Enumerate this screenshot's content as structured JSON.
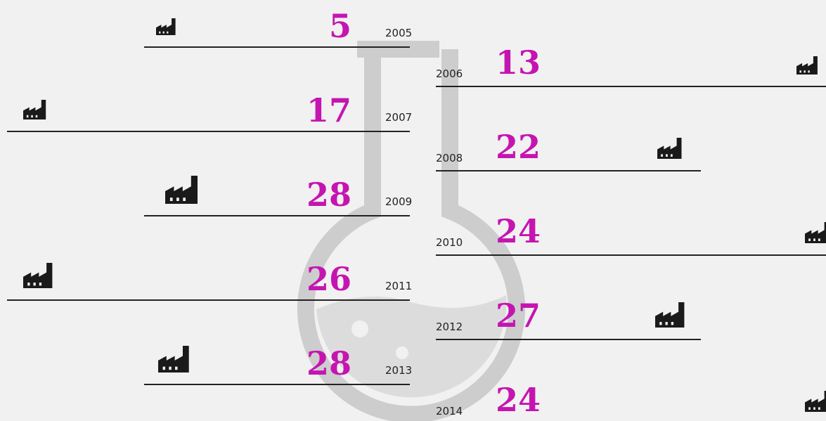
{
  "items": [
    {
      "year": "2005",
      "value": 5
    },
    {
      "year": "2006",
      "value": 13
    },
    {
      "year": "2007",
      "value": 17
    },
    {
      "year": "2008",
      "value": 22
    },
    {
      "year": "2009",
      "value": 28
    },
    {
      "year": "2010",
      "value": 24
    },
    {
      "year": "2011",
      "value": 26
    },
    {
      "year": "2012",
      "value": 27
    },
    {
      "year": "2013",
      "value": 28
    },
    {
      "year": "2014",
      "value": 24
    }
  ]
}
